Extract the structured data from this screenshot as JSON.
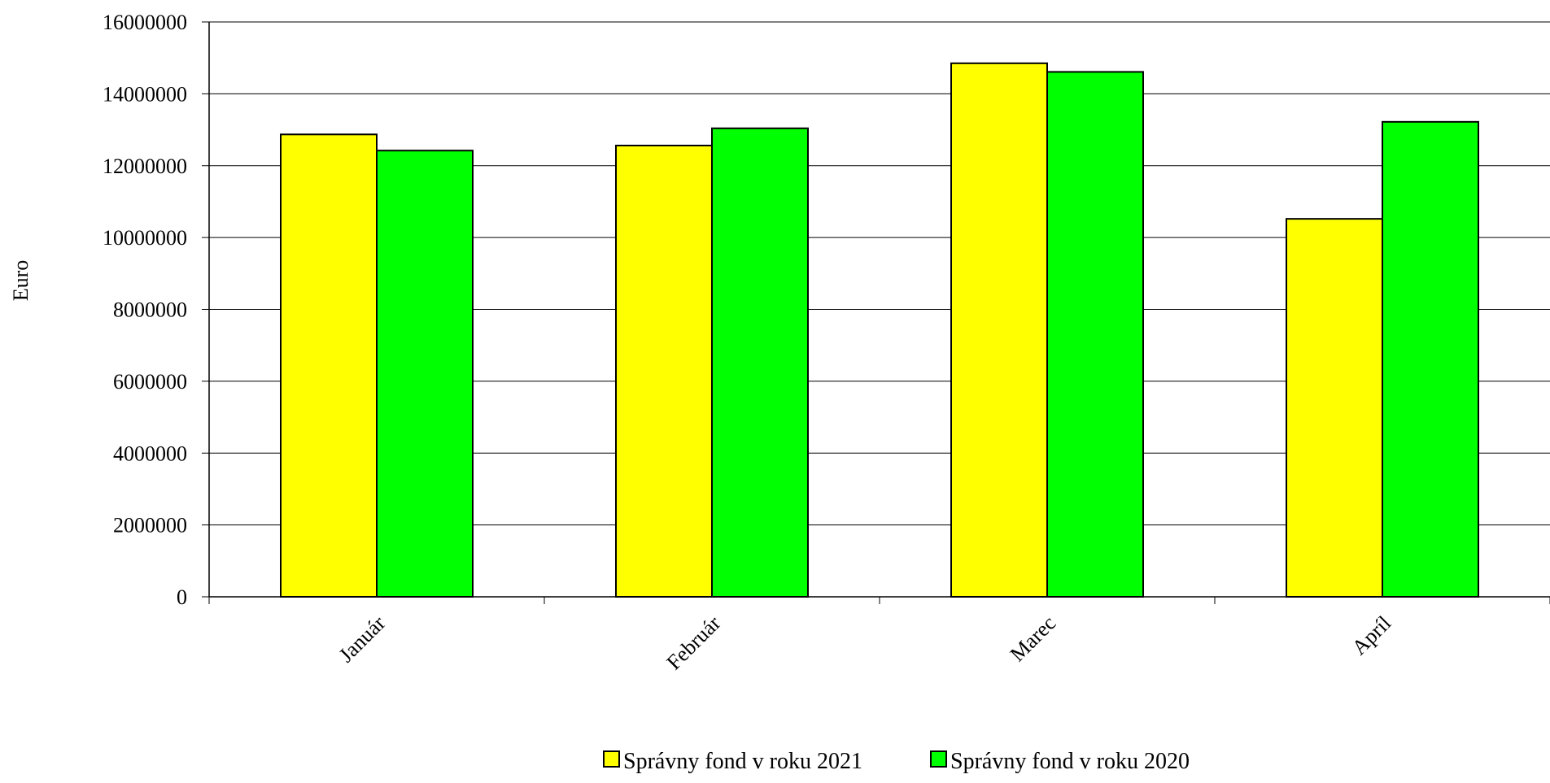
{
  "chart_data": {
    "type": "bar",
    "title": "",
    "xlabel": "",
    "ylabel": "Euro",
    "categories": [
      "Január",
      "Február",
      "Marec",
      "Apríl"
    ],
    "series": [
      {
        "name": "Správny fond v roku 2021",
        "color": "#FFFF00",
        "values": [
          12870000,
          12560000,
          14850000,
          10520000
        ]
      },
      {
        "name": "Správny fond v roku 2020",
        "color": "#00FF00",
        "values": [
          12420000,
          13040000,
          14610000,
          13220000
        ]
      }
    ],
    "ylim": [
      0,
      16000000
    ],
    "yticks": [
      "0",
      "2000000",
      "4000000",
      "6000000",
      "8000000",
      "10000000",
      "12000000",
      "14000000",
      "16000000"
    ],
    "grid": true,
    "legend_position": "bottom"
  }
}
